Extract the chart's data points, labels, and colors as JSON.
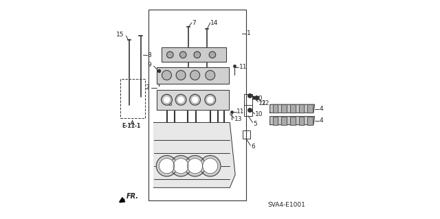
{
  "bg_color": "#ffffff",
  "diagram_code_label": "SVA4-E1001",
  "ref_label": "E-11-1",
  "fr_label": "FR.",
  "line_color": "#333333",
  "text_color": "#222222"
}
